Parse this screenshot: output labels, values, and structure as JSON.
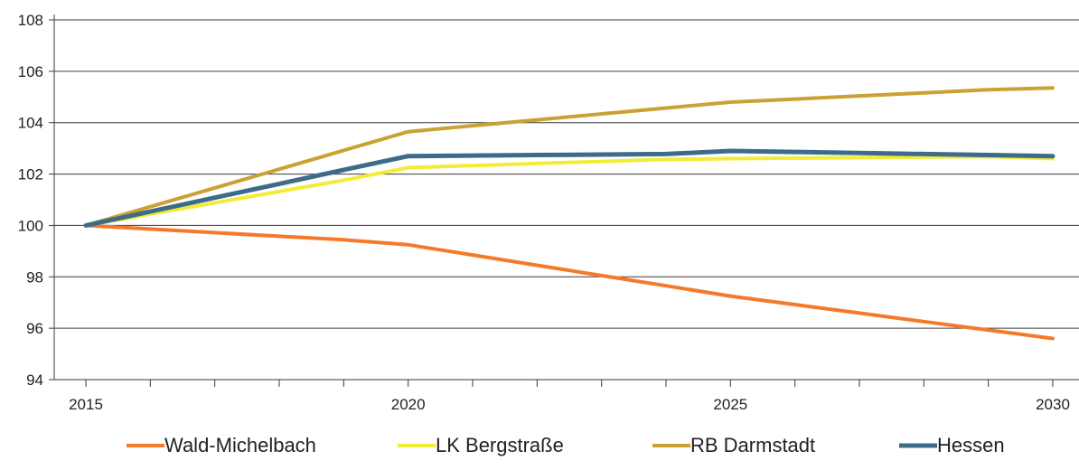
{
  "chart_data": {
    "type": "line",
    "x": [
      2015,
      2016,
      2017,
      2018,
      2019,
      2020,
      2021,
      2022,
      2023,
      2024,
      2025,
      2026,
      2027,
      2028,
      2029,
      2030
    ],
    "x_tick_labels": [
      "2015",
      "2020",
      "2025",
      "2030"
    ],
    "y_tick_labels": [
      "94",
      "96",
      "98",
      "100",
      "102",
      "104",
      "106",
      "108"
    ],
    "ylim": [
      94,
      108
    ],
    "xlim": [
      2015,
      2030
    ],
    "grid": "horizontal",
    "legend_position": "bottom",
    "series": [
      {
        "name": "Wald-Michelbach",
        "color": "#f47a2a",
        "values": [
          100.0,
          99.86,
          99.72,
          99.58,
          99.44,
          99.25,
          98.85,
          98.45,
          98.05,
          97.65,
          97.25,
          96.92,
          96.59,
          96.26,
          95.93,
          95.6
        ]
      },
      {
        "name": "LK Bergstraße",
        "color": "#f2ec38",
        "values": [
          100.0,
          100.44,
          100.88,
          101.32,
          101.76,
          102.25,
          102.33,
          102.41,
          102.49,
          102.57,
          102.6,
          102.62,
          102.64,
          102.66,
          102.68,
          102.6
        ]
      },
      {
        "name": "RB Darmstadt",
        "color": "#c9a233",
        "values": [
          100.0,
          100.73,
          101.46,
          102.19,
          102.92,
          103.65,
          103.88,
          104.11,
          104.34,
          104.57,
          104.8,
          104.92,
          105.04,
          105.16,
          105.28,
          105.35
        ]
      },
      {
        "name": "Hessen",
        "color": "#3d6b8a",
        "values": [
          100.0,
          100.54,
          101.08,
          101.62,
          102.16,
          102.7,
          102.72,
          102.74,
          102.76,
          102.78,
          102.9,
          102.86,
          102.82,
          102.78,
          102.74,
          102.7
        ]
      }
    ]
  }
}
